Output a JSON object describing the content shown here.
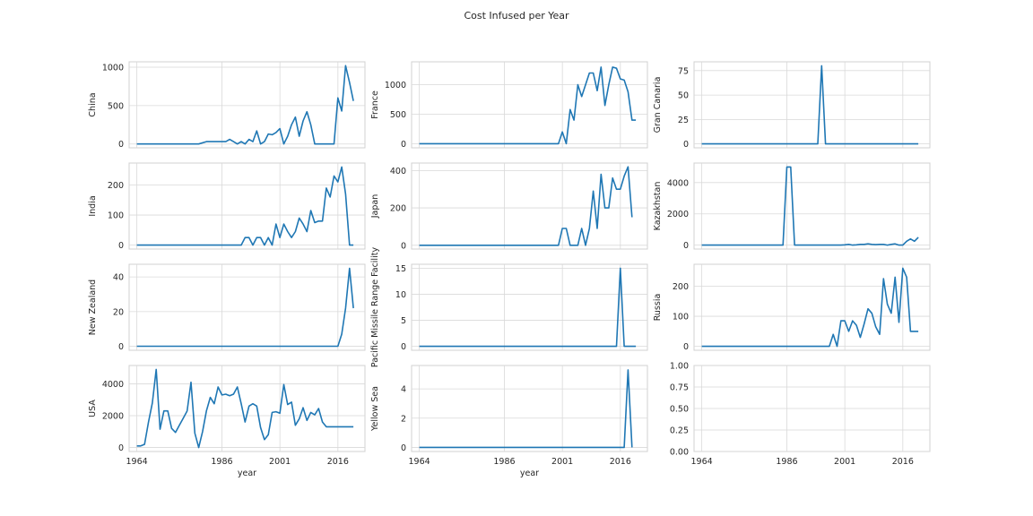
{
  "chart_data": {
    "type": "line",
    "title": "Cost Infused per Year",
    "xlabel": "year",
    "x_ticks": [
      1964,
      1986,
      2001,
      2016
    ],
    "xlim": [
      1962,
      2023
    ],
    "grid": true,
    "panels": [
      {
        "ylabel": "China",
        "ylim": [
          -50,
          1070
        ],
        "y_ticks": [
          0,
          500,
          1000
        ],
        "x": [
          1964,
          1966,
          1968,
          1970,
          1972,
          1974,
          1976,
          1978,
          1980,
          1982,
          1984,
          1986,
          1987,
          1988,
          1989,
          1990,
          1991,
          1992,
          1993,
          1994,
          1995,
          1996,
          1997,
          1998,
          1999,
          2000,
          2001,
          2002,
          2003,
          2004,
          2005,
          2006,
          2007,
          2008,
          2009,
          2010,
          2011,
          2012,
          2013,
          2014,
          2015,
          2016,
          2017,
          2018,
          2019,
          2020
        ],
        "values": [
          0,
          0,
          0,
          0,
          0,
          0,
          0,
          0,
          0,
          30,
          30,
          30,
          30,
          60,
          30,
          0,
          30,
          0,
          60,
          30,
          170,
          0,
          30,
          130,
          120,
          150,
          200,
          0,
          100,
          250,
          350,
          100,
          300,
          420,
          250,
          0,
          0,
          0,
          0,
          0,
          0,
          600,
          430,
          1020,
          800,
          560
        ]
      },
      {
        "ylabel": "France",
        "ylim": [
          -70,
          1390
        ],
        "y_ticks": [
          0,
          500,
          1000
        ],
        "x": [
          1964,
          1970,
          1975,
          1980,
          1985,
          1990,
          1995,
          2000,
          2001,
          2002,
          2003,
          2004,
          2005,
          2006,
          2007,
          2008,
          2009,
          2010,
          2011,
          2012,
          2013,
          2014,
          2015,
          2016,
          2017,
          2018,
          2019,
          2020
        ],
        "values": [
          0,
          0,
          0,
          0,
          0,
          0,
          0,
          0,
          200,
          0,
          580,
          400,
          1000,
          800,
          1000,
          1200,
          1200,
          900,
          1300,
          650,
          1000,
          1300,
          1280,
          1100,
          1080,
          880,
          400,
          400
        ]
      },
      {
        "ylabel": "Gran Canaria",
        "ylim": [
          -4,
          84
        ],
        "y_ticks": [
          0,
          25,
          50,
          75
        ],
        "x": [
          1964,
          1994,
          1995,
          1996,
          2000,
          2010,
          2020
        ],
        "values": [
          0,
          0,
          80,
          0,
          0,
          0,
          0
        ]
      },
      {
        "ylabel": "India",
        "ylim": [
          -13,
          273
        ],
        "y_ticks": [
          0,
          100,
          200
        ],
        "x": [
          1964,
          1970,
          1980,
          1985,
          1986,
          1987,
          1988,
          1989,
          1990,
          1991,
          1992,
          1993,
          1994,
          1995,
          1996,
          1997,
          1998,
          1999,
          2000,
          2001,
          2002,
          2003,
          2004,
          2005,
          2006,
          2007,
          2008,
          2009,
          2010,
          2011,
          2012,
          2013,
          2014,
          2015,
          2016,
          2017,
          2018,
          2019,
          2020
        ],
        "values": [
          0,
          0,
          0,
          0,
          0,
          0,
          0,
          0,
          0,
          0,
          25,
          25,
          0,
          25,
          25,
          0,
          25,
          0,
          70,
          25,
          70,
          45,
          25,
          45,
          90,
          70,
          45,
          115,
          75,
          80,
          80,
          190,
          160,
          230,
          210,
          260,
          170,
          0,
          0
        ]
      },
      {
        "ylabel": "Japan",
        "ylim": [
          -20,
          440
        ],
        "y_ticks": [
          0,
          200,
          400
        ],
        "x": [
          1964,
          1975,
          1990,
          1999,
          2000,
          2001,
          2002,
          2003,
          2004,
          2005,
          2006,
          2007,
          2008,
          2009,
          2010,
          2011,
          2012,
          2013,
          2014,
          2015,
          2016,
          2017,
          2018,
          2019
        ],
        "values": [
          0,
          0,
          0,
          0,
          0,
          90,
          90,
          0,
          0,
          0,
          90,
          0,
          90,
          290,
          90,
          380,
          200,
          200,
          360,
          300,
          300,
          370,
          420,
          150
        ]
      },
      {
        "ylabel": "Kazakhstan",
        "ylim": [
          -250,
          5250
        ],
        "y_ticks": [
          0,
          2000,
          4000
        ],
        "x": [
          1964,
          1980,
          1984,
          1985,
          1986,
          1987,
          1988,
          1995,
          2000,
          2001,
          2002,
          2003,
          2004,
          2005,
          2006,
          2007,
          2008,
          2009,
          2010,
          2011,
          2012,
          2013,
          2014,
          2015,
          2016,
          2017,
          2018,
          2019,
          2020
        ],
        "values": [
          0,
          0,
          0,
          0,
          5000,
          5000,
          0,
          0,
          0,
          20,
          50,
          0,
          20,
          50,
          50,
          80,
          50,
          30,
          50,
          50,
          0,
          50,
          80,
          0,
          0,
          250,
          400,
          250,
          500
        ]
      },
      {
        "ylabel": "New Zealand",
        "ylim": [
          -2.3,
          47.3
        ],
        "y_ticks": [
          0,
          20,
          40
        ],
        "x": [
          1964,
          1980,
          2000,
          2015,
          2016,
          2017,
          2018,
          2019,
          2020
        ],
        "values": [
          0,
          0,
          0,
          0,
          0,
          7,
          22,
          45,
          22
        ]
      },
      {
        "ylabel": "Pacific Missile Range Facility",
        "ylim": [
          -0.75,
          15.75
        ],
        "y_ticks": [
          0,
          5,
          10,
          15
        ],
        "x": [
          1964,
          1990,
          2014,
          2015,
          2016,
          2017,
          2018,
          2019,
          2020
        ],
        "values": [
          0,
          0,
          0,
          0,
          15,
          0,
          0,
          0,
          0
        ]
      },
      {
        "ylabel": "Russia",
        "ylim": [
          -13,
          273
        ],
        "y_ticks": [
          0,
          100,
          200
        ],
        "x": [
          1964,
          1985,
          1990,
          1996,
          1997,
          1998,
          1999,
          2000,
          2001,
          2002,
          2003,
          2004,
          2005,
          2006,
          2007,
          2008,
          2009,
          2010,
          2011,
          2012,
          2013,
          2014,
          2015,
          2016,
          2017,
          2018,
          2019,
          2020
        ],
        "values": [
          0,
          0,
          0,
          0,
          0,
          40,
          0,
          85,
          85,
          50,
          85,
          70,
          30,
          75,
          125,
          110,
          65,
          40,
          225,
          140,
          110,
          230,
          80,
          260,
          230,
          50,
          50,
          50
        ]
      },
      {
        "ylabel": "USA",
        "ylim": [
          -250,
          5150
        ],
        "y_ticks": [
          0,
          2000,
          4000
        ],
        "x": [
          1964,
          1965,
          1966,
          1967,
          1968,
          1969,
          1970,
          1971,
          1972,
          1973,
          1974,
          1975,
          1976,
          1977,
          1978,
          1979,
          1980,
          1981,
          1982,
          1983,
          1984,
          1985,
          1986,
          1987,
          1988,
          1989,
          1990,
          1991,
          1992,
          1993,
          1994,
          1995,
          1996,
          1997,
          1998,
          1999,
          2000,
          2001,
          2002,
          2003,
          2004,
          2005,
          2006,
          2007,
          2008,
          2009,
          2010,
          2011,
          2012,
          2013,
          2014,
          2015,
          2016,
          2017,
          2018,
          2019,
          2020
        ],
        "values": [
          100,
          100,
          200,
          1600,
          2800,
          4900,
          1150,
          2300,
          2300,
          1200,
          950,
          1400,
          1850,
          2300,
          4100,
          900,
          0,
          1000,
          2300,
          3150,
          2750,
          3800,
          3300,
          3350,
          3250,
          3350,
          3800,
          2750,
          1600,
          2600,
          2750,
          2600,
          1250,
          500,
          800,
          2200,
          2250,
          2150,
          3950,
          2700,
          2850,
          1400,
          1800,
          2500,
          1700,
          2200,
          2050,
          2450,
          1600,
          1300,
          1300,
          1300,
          1300,
          1300,
          1300,
          1300,
          1300
        ]
      },
      {
        "ylabel": "Yellow Sea",
        "ylim": [
          -0.28,
          5.6
        ],
        "y_ticks": [
          0,
          2,
          4
        ],
        "x": [
          1964,
          1990,
          2017,
          2018,
          2019
        ],
        "values": [
          0,
          0,
          0,
          5.3,
          0
        ]
      },
      {
        "ylabel": "",
        "ylim": [
          0,
          1
        ],
        "y_ticks": [
          0.0,
          0.25,
          0.5,
          0.75,
          1.0
        ],
        "y_tick_labels": [
          "0.00",
          "0.25",
          "0.50",
          "0.75",
          "1.00"
        ],
        "x": [],
        "values": []
      }
    ]
  }
}
